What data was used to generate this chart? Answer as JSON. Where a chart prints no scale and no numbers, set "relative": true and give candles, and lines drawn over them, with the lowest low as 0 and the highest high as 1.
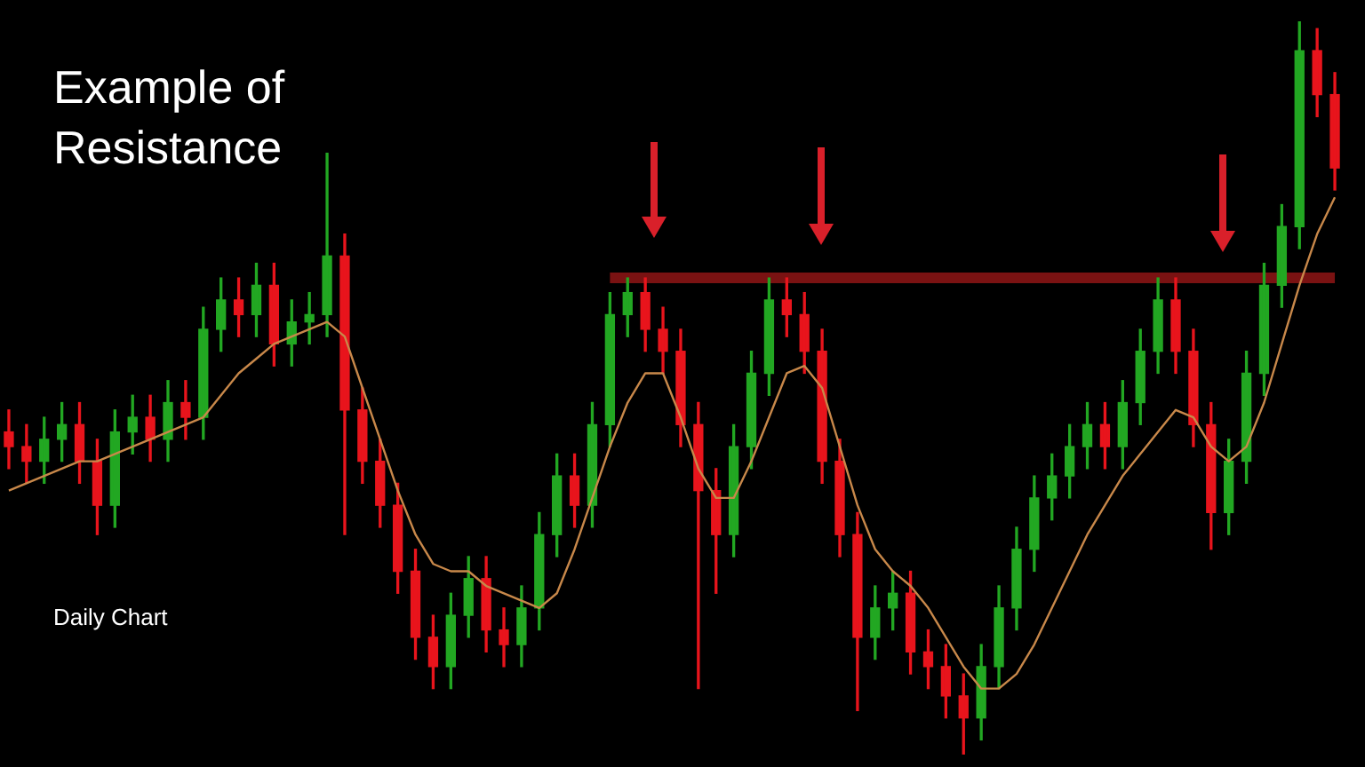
{
  "chart_data": {
    "type": "candlestick",
    "title": "Example of Resistance",
    "annotations": [
      "Daily Chart"
    ],
    "relative": true,
    "legend": false,
    "categories": [
      null,
      null,
      null,
      null,
      null,
      null,
      null,
      null,
      null,
      null,
      null,
      null,
      null,
      null,
      null,
      null,
      null,
      null,
      null,
      null,
      null,
      null,
      null,
      null,
      null,
      null,
      null,
      null,
      null,
      null,
      null,
      null,
      null,
      null,
      null,
      null,
      null,
      null,
      null,
      null,
      null,
      null,
      null,
      null,
      null,
      null,
      null,
      null,
      null,
      null,
      null,
      null,
      null,
      null,
      null,
      null,
      null,
      null,
      null,
      null,
      null,
      null,
      null,
      null,
      null,
      null,
      null,
      null,
      null,
      null,
      null,
      null,
      null,
      null,
      null,
      null
    ],
    "series": [
      {
        "ohlc": [
          [
            0.44,
            0.47,
            0.39,
            0.42
          ],
          [
            0.42,
            0.45,
            0.37,
            0.4
          ],
          [
            0.4,
            0.46,
            0.37,
            0.43
          ],
          [
            0.43,
            0.48,
            0.4,
            0.45
          ],
          [
            0.45,
            0.48,
            0.37,
            0.4
          ],
          [
            0.4,
            0.43,
            0.3,
            0.34
          ],
          [
            0.34,
            0.47,
            0.31,
            0.44
          ],
          [
            0.44,
            0.49,
            0.41,
            0.46
          ],
          [
            0.46,
            0.49,
            0.4,
            0.43
          ],
          [
            0.43,
            0.51,
            0.4,
            0.48
          ],
          [
            0.48,
            0.51,
            0.43,
            0.46
          ],
          [
            0.46,
            0.61,
            0.43,
            0.58
          ],
          [
            0.58,
            0.65,
            0.55,
            0.62
          ],
          [
            0.62,
            0.65,
            0.57,
            0.6
          ],
          [
            0.6,
            0.67,
            0.57,
            0.64
          ],
          [
            0.64,
            0.67,
            0.53,
            0.56
          ],
          [
            0.56,
            0.62,
            0.53,
            0.59
          ],
          [
            0.59,
            0.63,
            0.56,
            0.6
          ],
          [
            0.6,
            0.82,
            0.57,
            0.68
          ],
          [
            0.68,
            0.71,
            0.3,
            0.47
          ],
          [
            0.47,
            0.5,
            0.37,
            0.4
          ],
          [
            0.4,
            0.43,
            0.31,
            0.34
          ],
          [
            0.34,
            0.37,
            0.22,
            0.25
          ],
          [
            0.25,
            0.28,
            0.13,
            0.16
          ],
          [
            0.16,
            0.19,
            0.09,
            0.12
          ],
          [
            0.12,
            0.22,
            0.09,
            0.19
          ],
          [
            0.19,
            0.27,
            0.16,
            0.24
          ],
          [
            0.24,
            0.27,
            0.14,
            0.17
          ],
          [
            0.17,
            0.2,
            0.12,
            0.15
          ],
          [
            0.15,
            0.23,
            0.12,
            0.2
          ],
          [
            0.2,
            0.33,
            0.17,
            0.3
          ],
          [
            0.3,
            0.41,
            0.27,
            0.38
          ],
          [
            0.38,
            0.41,
            0.31,
            0.34
          ],
          [
            0.34,
            0.48,
            0.31,
            0.45
          ],
          [
            0.45,
            0.63,
            0.42,
            0.6
          ],
          [
            0.6,
            0.65,
            0.57,
            0.63
          ],
          [
            0.63,
            0.65,
            0.55,
            0.58
          ],
          [
            0.58,
            0.61,
            0.52,
            0.55
          ],
          [
            0.55,
            0.58,
            0.42,
            0.45
          ],
          [
            0.45,
            0.48,
            0.09,
            0.36
          ],
          [
            0.36,
            0.39,
            0.22,
            0.3
          ],
          [
            0.3,
            0.45,
            0.27,
            0.42
          ],
          [
            0.42,
            0.55,
            0.39,
            0.52
          ],
          [
            0.52,
            0.65,
            0.49,
            0.62
          ],
          [
            0.62,
            0.65,
            0.57,
            0.6
          ],
          [
            0.6,
            0.63,
            0.52,
            0.55
          ],
          [
            0.55,
            0.58,
            0.37,
            0.4
          ],
          [
            0.4,
            0.43,
            0.27,
            0.3
          ],
          [
            0.3,
            0.33,
            0.06,
            0.16
          ],
          [
            0.16,
            0.23,
            0.13,
            0.2
          ],
          [
            0.2,
            0.25,
            0.17,
            0.22
          ],
          [
            0.22,
            0.25,
            0.11,
            0.14
          ],
          [
            0.14,
            0.17,
            0.09,
            0.12
          ],
          [
            0.12,
            0.15,
            0.05,
            0.08
          ],
          [
            0.08,
            0.11,
            0.0,
            0.05
          ],
          [
            0.05,
            0.15,
            0.02,
            0.12
          ],
          [
            0.12,
            0.23,
            0.09,
            0.2
          ],
          [
            0.2,
            0.31,
            0.17,
            0.28
          ],
          [
            0.28,
            0.38,
            0.25,
            0.35
          ],
          [
            0.35,
            0.41,
            0.32,
            0.38
          ],
          [
            0.38,
            0.45,
            0.35,
            0.42
          ],
          [
            0.42,
            0.48,
            0.39,
            0.45
          ],
          [
            0.45,
            0.48,
            0.39,
            0.42
          ],
          [
            0.42,
            0.51,
            0.39,
            0.48
          ],
          [
            0.48,
            0.58,
            0.45,
            0.55
          ],
          [
            0.55,
            0.65,
            0.52,
            0.62
          ],
          [
            0.62,
            0.65,
            0.52,
            0.55
          ],
          [
            0.55,
            0.58,
            0.42,
            0.45
          ],
          [
            0.45,
            0.48,
            0.28,
            0.33
          ],
          [
            0.33,
            0.43,
            0.3,
            0.4
          ],
          [
            0.4,
            0.55,
            0.37,
            0.52
          ],
          [
            0.52,
            0.67,
            0.49,
            0.64
          ],
          [
            0.64,
            0.75,
            0.61,
            0.72
          ],
          [
            0.72,
            1.0,
            0.69,
            0.96
          ],
          [
            0.96,
            0.99,
            0.87,
            0.9
          ],
          [
            0.9,
            0.93,
            0.77,
            0.8
          ]
        ],
        "colors": [
          "#e8141c",
          "#e8141c",
          "#22a722",
          "#22a722",
          "#e8141c",
          "#e8141c",
          "#22a722",
          "#22a722",
          "#e8141c",
          "#22a722",
          "#e8141c",
          "#22a722",
          "#22a722",
          "#e8141c",
          "#22a722",
          "#e8141c",
          "#22a722",
          "#22a722",
          "#22a722",
          "#e8141c",
          "#e8141c",
          "#e8141c",
          "#e8141c",
          "#e8141c",
          "#e8141c",
          "#22a722",
          "#22a722",
          "#e8141c",
          "#e8141c",
          "#22a722",
          "#22a722",
          "#22a722",
          "#e8141c",
          "#22a722",
          "#22a722",
          "#22a722",
          "#e8141c",
          "#e8141c",
          "#e8141c",
          "#e8141c",
          "#e8141c",
          "#22a722",
          "#22a722",
          "#22a722",
          "#e8141c",
          "#e8141c",
          "#e8141c",
          "#e8141c",
          "#e8141c",
          "#22a722",
          "#22a722",
          "#e8141c",
          "#e8141c",
          "#e8141c",
          "#e8141c",
          "#22a722",
          "#22a722",
          "#22a722",
          "#22a722",
          "#22a722",
          "#22a722",
          "#22a722",
          "#e8141c",
          "#22a722",
          "#22a722",
          "#22a722",
          "#e8141c",
          "#e8141c",
          "#e8141c",
          "#22a722",
          "#22a722",
          "#22a722",
          "#22a722",
          "#22a722",
          "#e8141c",
          "#e8141c"
        ]
      },
      {
        "type": "line",
        "color": "#c8884a",
        "values": [
          0.36,
          0.37,
          0.38,
          0.39,
          0.4,
          0.4,
          0.41,
          0.42,
          0.43,
          0.44,
          0.45,
          0.46,
          0.49,
          0.52,
          0.54,
          0.56,
          0.57,
          0.58,
          0.59,
          0.57,
          0.5,
          0.43,
          0.36,
          0.3,
          0.26,
          0.25,
          0.25,
          0.23,
          0.22,
          0.21,
          0.2,
          0.22,
          0.28,
          0.35,
          0.42,
          0.48,
          0.52,
          0.52,
          0.46,
          0.39,
          0.35,
          0.35,
          0.4,
          0.46,
          0.52,
          0.53,
          0.5,
          0.42,
          0.34,
          0.28,
          0.25,
          0.23,
          0.2,
          0.16,
          0.12,
          0.09,
          0.09,
          0.11,
          0.15,
          0.2,
          0.25,
          0.3,
          0.34,
          0.38,
          0.41,
          0.44,
          0.47,
          0.46,
          0.42,
          0.4,
          0.42,
          0.48,
          0.56,
          0.64,
          0.71,
          0.76
        ]
      },
      {
        "type": "line",
        "color": "#7a1212",
        "values": [
          null,
          null,
          null,
          null,
          null,
          null,
          null,
          null,
          null,
          null,
          null,
          null,
          null,
          null,
          null,
          null,
          null,
          null,
          null,
          null,
          null,
          null,
          null,
          null,
          null,
          null,
          null,
          null,
          null,
          null,
          null,
          null,
          null,
          null,
          0.65,
          0.65,
          0.65,
          0.65,
          0.65,
          0.65,
          0.65,
          0.65,
          0.65,
          0.65,
          0.65,
          0.65,
          0.65,
          0.65,
          0.65,
          0.65,
          0.65,
          0.65,
          0.65,
          0.65,
          0.65,
          0.65,
          0.65,
          0.65,
          0.65,
          0.65,
          0.65,
          0.65,
          0.65,
          0.65,
          0.65,
          0.65,
          0.65,
          0.65,
          0.65,
          0.65,
          0.65,
          0.65,
          0.65,
          0.65,
          0.65,
          0.65
        ]
      }
    ]
  }
}
